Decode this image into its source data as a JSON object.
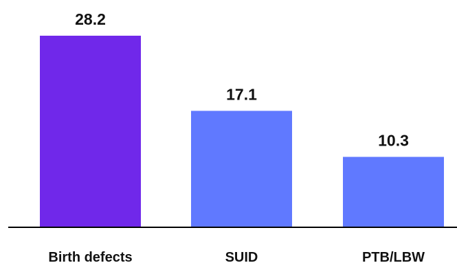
{
  "chart_data": {
    "type": "bar",
    "categories": [
      "Birth defects",
      "SUID",
      "PTB/LBW"
    ],
    "values": [
      28.2,
      17.1,
      10.3
    ],
    "value_labels": [
      "28.2",
      "17.1",
      "10.3"
    ],
    "ylim": [
      0,
      30
    ],
    "grid": false,
    "legend": "none",
    "colors": {
      "highlight_bar": "#7028EA",
      "bar": "#6079FF",
      "axis": "#000000",
      "text": "#111111"
    },
    "highlight_index": 0
  }
}
